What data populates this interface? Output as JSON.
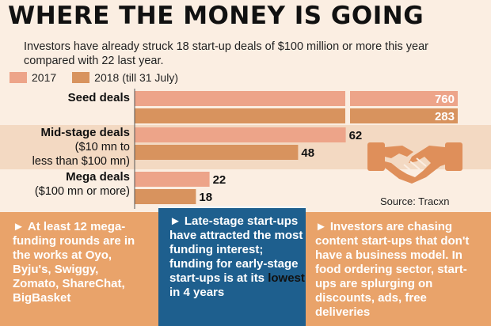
{
  "header": {
    "title": "WHERE THE MONEY IS GOING",
    "subtitle": "Investors have already struck 18 start-up deals of $100 million or more this year compared with 22 last year."
  },
  "legend": [
    {
      "label": "2017",
      "color": "#eda489"
    },
    {
      "label": "2018 (till 31 July)",
      "color": "#d8935e"
    }
  ],
  "chart_data": {
    "type": "bar",
    "orientation": "horizontal",
    "title": "WHERE THE MONEY IS GOING",
    "categories": [
      {
        "lines": [
          "Seed deals"
        ]
      },
      {
        "lines": [
          "Mid-stage deals",
          "($10 mn to",
          "less than $100 mn)"
        ]
      },
      {
        "lines": [
          "Mega deals",
          "($100 mn or more)"
        ]
      }
    ],
    "series": [
      {
        "name": "2017",
        "values": [
          760,
          62,
          22
        ],
        "color": "#eda489"
      },
      {
        "name": "2018 (till 31 July)",
        "values": [
          283,
          48,
          18
        ],
        "color": "#d8935e"
      }
    ],
    "scale_break": true,
    "legend_position": "top-left",
    "grid": false
  },
  "source": "Source: Tracxn",
  "icon": "handshake-icon",
  "panels": [
    {
      "parts": [
        {
          "t": "At least ",
          "b": false
        },
        {
          "t": "12",
          "b": true
        },
        {
          "t": " mega-funding rounds are in the works at Oyo, Byju's, Swiggy, Zomato, ShareChat, BigBasket",
          "b": false
        }
      ]
    },
    {
      "parts": [
        {
          "t": "Late-stage start-ups have attracted the most funding interest; funding for early-stage start-ups is at its ",
          "b": false
        },
        {
          "t": "lowest",
          "b": true
        },
        {
          "t": " in 4 years",
          "b": false
        }
      ]
    },
    {
      "parts": [
        {
          "t": "Investors are chasing content start-ups that don't have a business model. In food ordering sector, start-ups are splurging on discounts, ads, free deliveries",
          "b": false
        }
      ]
    }
  ],
  "colors": {
    "band": "#e9a36a",
    "mid_panel": "#1e5f8e",
    "row_alt": "#f3d9c2"
  }
}
